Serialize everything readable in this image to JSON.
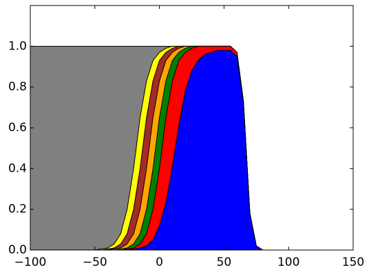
{
  "chart_data": {
    "type": "area",
    "x": [
      -100,
      -95,
      -90,
      -85,
      -80,
      -75,
      -70,
      -65,
      -60,
      -55,
      -50,
      -45,
      -40,
      -35,
      -30,
      -25,
      -20,
      -15,
      -10,
      -5,
      0,
      5,
      10,
      15,
      20,
      25,
      30,
      35,
      40,
      45,
      50,
      55,
      60,
      65,
      70,
      75,
      80,
      85,
      90,
      95,
      100,
      105,
      110,
      115,
      120,
      125,
      130,
      135,
      140,
      145,
      150
    ],
    "series": [
      {
        "color": "#808080",
        "values": [
          1,
          1,
          1,
          1,
          1,
          1,
          1,
          1,
          1,
          1,
          1,
          1,
          1,
          1,
          1,
          1,
          1,
          1,
          1,
          1,
          1,
          1,
          1,
          1,
          1,
          1,
          1,
          1,
          1,
          1,
          1,
          1,
          0.97,
          0.73,
          0.18,
          0.02,
          0,
          0,
          0,
          0,
          0,
          0,
          0,
          0,
          0,
          0,
          0,
          0,
          0,
          0,
          0
        ]
      },
      {
        "color": "#ffff00",
        "values": [
          0,
          0,
          0,
          0,
          0,
          0,
          0,
          0,
          0,
          0,
          0,
          0.005,
          0.01,
          0.03,
          0.08,
          0.2,
          0.4,
          0.65,
          0.83,
          0.93,
          0.97,
          0.99,
          1,
          1,
          1,
          1,
          1,
          1,
          1,
          1,
          1,
          1,
          0.97,
          0.73,
          0.18,
          0.02,
          0,
          0,
          0,
          0,
          0,
          0,
          0,
          0,
          0,
          0,
          0,
          0,
          0,
          0,
          0
        ]
      },
      {
        "color": "#a52a2a",
        "values": [
          0,
          0,
          0,
          0,
          0,
          0,
          0,
          0,
          0,
          0,
          0,
          0,
          0.005,
          0.01,
          0.03,
          0.08,
          0.2,
          0.4,
          0.65,
          0.83,
          0.93,
          0.97,
          0.99,
          1,
          1,
          1,
          1,
          1,
          1,
          1,
          1,
          1,
          0.97,
          0.73,
          0.18,
          0.02,
          0,
          0,
          0,
          0,
          0,
          0,
          0,
          0,
          0,
          0,
          0,
          0,
          0,
          0,
          0
        ]
      },
      {
        "color": "#ffa500",
        "values": [
          0,
          0,
          0,
          0,
          0,
          0,
          0,
          0,
          0,
          0,
          0,
          0,
          0,
          0.005,
          0.01,
          0.03,
          0.08,
          0.2,
          0.4,
          0.65,
          0.83,
          0.93,
          0.97,
          0.99,
          1,
          1,
          1,
          1,
          1,
          1,
          1,
          1,
          0.97,
          0.73,
          0.18,
          0.02,
          0,
          0,
          0,
          0,
          0,
          0,
          0,
          0,
          0,
          0,
          0,
          0,
          0,
          0,
          0
        ]
      },
      {
        "color": "#008000",
        "values": [
          0,
          0,
          0,
          0,
          0,
          0,
          0,
          0,
          0,
          0,
          0,
          0,
          0,
          0,
          0.005,
          0.01,
          0.03,
          0.08,
          0.2,
          0.4,
          0.65,
          0.83,
          0.93,
          0.97,
          0.99,
          1,
          1,
          1,
          1,
          1,
          1,
          1,
          0.97,
          0.73,
          0.18,
          0.02,
          0,
          0,
          0,
          0,
          0,
          0,
          0,
          0,
          0,
          0,
          0,
          0,
          0,
          0,
          0
        ]
      },
      {
        "color": "#ff0000",
        "values": [
          0,
          0,
          0,
          0,
          0,
          0,
          0,
          0,
          0,
          0,
          0,
          0,
          0,
          0,
          0,
          0.005,
          0.01,
          0.03,
          0.08,
          0.2,
          0.4,
          0.65,
          0.83,
          0.93,
          0.97,
          0.99,
          1,
          1,
          1,
          1,
          1,
          1,
          0.97,
          0.73,
          0.18,
          0.02,
          0,
          0,
          0,
          0,
          0,
          0,
          0,
          0,
          0,
          0,
          0,
          0,
          0,
          0,
          0
        ]
      },
      {
        "color": "#0000ff",
        "values": [
          0,
          0,
          0,
          0,
          0,
          0,
          0,
          0,
          0,
          0,
          0,
          0,
          0,
          0,
          0,
          0,
          0.005,
          0.01,
          0.02,
          0.05,
          0.12,
          0.23,
          0.41,
          0.61,
          0.78,
          0.88,
          0.93,
          0.96,
          0.97,
          0.98,
          0.98,
          0.98,
          0.95,
          0.72,
          0.18,
          0.02,
          0,
          0,
          0,
          0,
          0,
          0,
          0,
          0,
          0,
          0,
          0,
          0,
          0,
          0,
          0
        ]
      }
    ],
    "xlim": [
      -100,
      150
    ],
    "xticks": [
      {
        "value": -100,
        "label": "−100"
      },
      {
        "value": -50,
        "label": "−50"
      },
      0,
      50,
      100,
      150
    ],
    "ylim": [
      0,
      1.2
    ],
    "yticks": [
      {
        "value": 0,
        "label": "0.0"
      },
      {
        "value": 0.2,
        "label": "0.2"
      },
      {
        "value": 0.4,
        "label": "0.4"
      },
      {
        "value": 0.6,
        "label": "0.6"
      },
      {
        "value": 0.8,
        "label": "0.8"
      },
      {
        "value": 1,
        "label": "1.0"
      }
    ]
  }
}
